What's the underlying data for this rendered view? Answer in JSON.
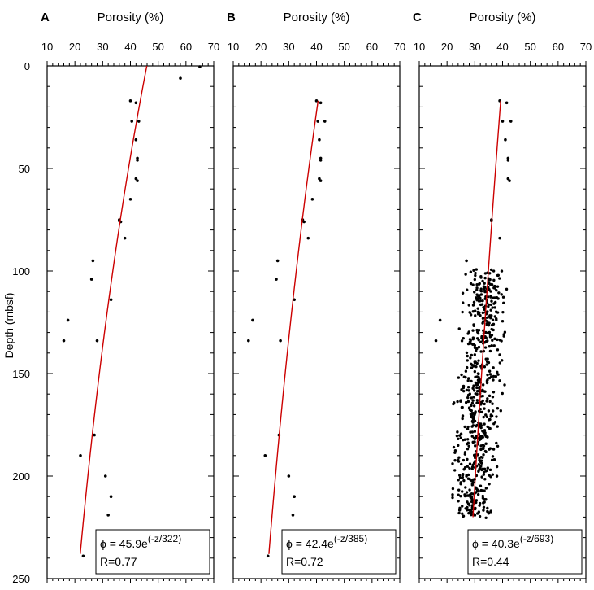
{
  "figure": {
    "ylabel": "Depth (mbsf)",
    "y_ticks": [
      "0",
      "50",
      "100",
      "150",
      "200",
      "250"
    ]
  },
  "chart_data": [
    {
      "type": "scatter",
      "panel_label": "A",
      "title": "Porosity (%)",
      "xlabel": "Porosity (%)",
      "ylabel": "Depth (mbsf)",
      "xlim": [
        10,
        70
      ],
      "ylim": [
        0,
        250
      ],
      "y_inverted": true,
      "x_ticks": [
        10,
        20,
        30,
        40,
        50,
        60,
        70
      ],
      "y_ticks": [
        0,
        50,
        100,
        150,
        200,
        250
      ],
      "axis_position": "top",
      "fit_equation": "ϕ = 45.9e",
      "fit_exponent": "(-z/322)",
      "fit_r": "R=0.77",
      "fit": {
        "a": 45.9,
        "b": 322,
        "z_range": [
          0,
          238
        ],
        "color": "#cc0000"
      },
      "points": [
        [
          65,
          0.4
        ],
        [
          58,
          6
        ],
        [
          40,
          17
        ],
        [
          42,
          18
        ],
        [
          40.5,
          27
        ],
        [
          43,
          27
        ],
        [
          42,
          36
        ],
        [
          42.5,
          45
        ],
        [
          42.5,
          46
        ],
        [
          42,
          55
        ],
        [
          42.5,
          56
        ],
        [
          40,
          65
        ],
        [
          36,
          75
        ],
        [
          36,
          75.5
        ],
        [
          36.5,
          76
        ],
        [
          38,
          84
        ],
        [
          26.5,
          95
        ],
        [
          26,
          104
        ],
        [
          33,
          114
        ],
        [
          17.5,
          124
        ],
        [
          16,
          134
        ],
        [
          28,
          134
        ],
        [
          27,
          180
        ],
        [
          22,
          190
        ],
        [
          31,
          200
        ],
        [
          33,
          210
        ],
        [
          32,
          219
        ],
        [
          23,
          239
        ]
      ]
    },
    {
      "type": "scatter",
      "panel_label": "B",
      "title": "Porosity (%)",
      "xlabel": "Porosity (%)",
      "ylabel": "",
      "xlim": [
        10,
        70
      ],
      "ylim": [
        0,
        250
      ],
      "y_inverted": true,
      "x_ticks": [
        10,
        20,
        30,
        40,
        50,
        60,
        70
      ],
      "y_ticks": [
        0,
        50,
        100,
        150,
        200,
        250
      ],
      "axis_position": "top",
      "fit_equation": "ϕ = 42.4e",
      "fit_exponent": "(-z/385)",
      "fit_r": "R=0.72",
      "fit": {
        "a": 42.4,
        "b": 385,
        "z_range": [
          17,
          238
        ],
        "color": "#cc0000"
      },
      "points": [
        [
          40,
          17
        ],
        [
          41.5,
          18
        ],
        [
          40.5,
          27
        ],
        [
          43,
          27
        ],
        [
          41,
          36
        ],
        [
          41.5,
          45
        ],
        [
          41.5,
          46
        ],
        [
          41,
          55
        ],
        [
          41.5,
          56
        ],
        [
          38.5,
          65
        ],
        [
          35,
          75
        ],
        [
          35,
          75.5
        ],
        [
          35.5,
          76
        ],
        [
          37,
          84
        ],
        [
          26,
          95
        ],
        [
          25.5,
          104
        ],
        [
          32,
          114
        ],
        [
          17,
          124
        ],
        [
          15.5,
          134
        ],
        [
          27,
          134
        ],
        [
          26.5,
          180
        ],
        [
          21.5,
          190
        ],
        [
          30,
          200
        ],
        [
          32,
          210
        ],
        [
          31.5,
          219
        ],
        [
          22.5,
          239
        ]
      ]
    },
    {
      "type": "scatter",
      "panel_label": "C",
      "title": "Porosity (%)",
      "xlabel": "Porosity (%)",
      "ylabel": "",
      "xlim": [
        10,
        70
      ],
      "ylim": [
        0,
        250
      ],
      "y_inverted": true,
      "x_ticks": [
        10,
        20,
        30,
        40,
        50,
        60,
        70
      ],
      "y_ticks": [
        0,
        50,
        100,
        150,
        200,
        250
      ],
      "axis_position": "top",
      "fit_equation": "ϕ = 40.3e",
      "fit_exponent": "(-z/693)",
      "fit_r": "R=0.44",
      "fit": {
        "a": 40.3,
        "b": 693,
        "z_range": [
          17,
          220
        ],
        "color": "#cc0000"
      },
      "points": [
        [
          39,
          17
        ],
        [
          41.5,
          18
        ],
        [
          40,
          27
        ],
        [
          43,
          27
        ],
        [
          41,
          36
        ],
        [
          42,
          45
        ],
        [
          42,
          46
        ],
        [
          42,
          55
        ],
        [
          42.5,
          56
        ],
        [
          36,
          75
        ],
        [
          36,
          75.5
        ],
        [
          39,
          84
        ],
        [
          27,
          95
        ],
        [
          17.5,
          124
        ],
        [
          16,
          134
        ]
      ],
      "dense_cluster": {
        "x_range": [
          22,
          44
        ],
        "z_range": [
          99,
          221
        ],
        "center_at_100": 34,
        "center_at_220": 29,
        "spread": 5,
        "count": 650
      }
    }
  ]
}
